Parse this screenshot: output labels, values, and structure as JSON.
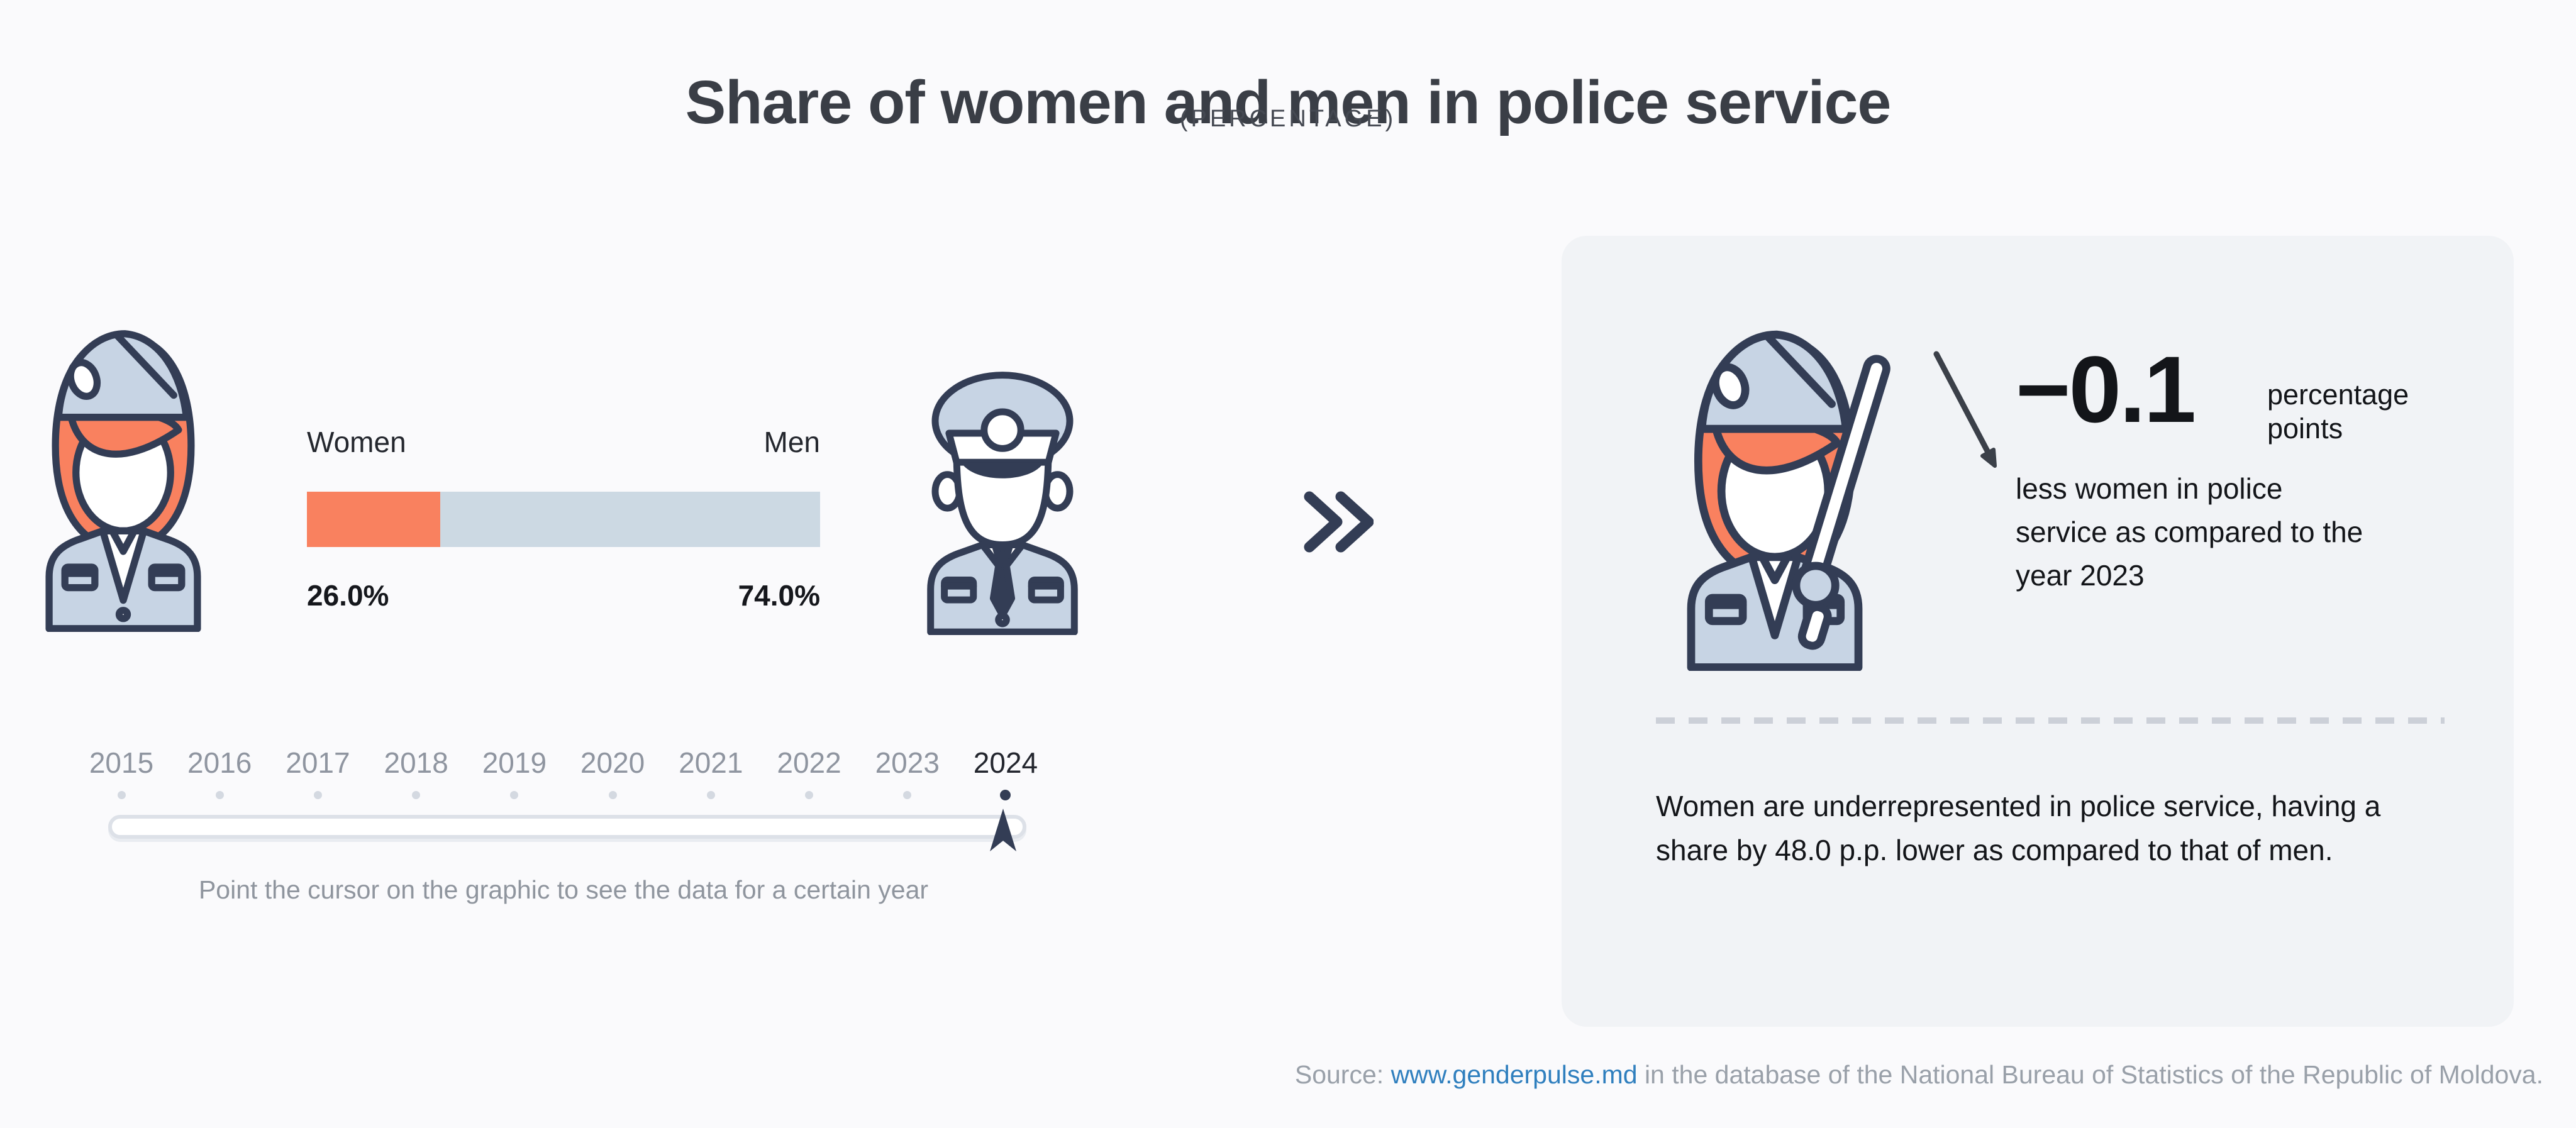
{
  "header": {
    "title": "Share of women and men in police service",
    "subtitle": "(PERCENTAGE)"
  },
  "chart": {
    "women_label": "Women",
    "men_label": "Men",
    "women_value": "26.0%",
    "men_value": "74.0%"
  },
  "chart_data": {
    "type": "bar",
    "title": "Share of women and men in police service",
    "subtitle": "(PERCENTAGE)",
    "categories": [
      "Women",
      "Men"
    ],
    "values": [
      26.0,
      74.0
    ],
    "unit": "%",
    "selected_year": 2024,
    "timeline_years": [
      2015,
      2016,
      2017,
      2018,
      2019,
      2020,
      2021,
      2022,
      2023,
      2024
    ],
    "change_vs_previous_year_pp": -0.1,
    "gap_women_vs_men_pp": 48.0,
    "legend_position": "above-bar",
    "colors": {
      "women": "#f9815f",
      "men": "#ccd9e3"
    }
  },
  "timeline": {
    "years": [
      "2015",
      "2016",
      "2017",
      "2018",
      "2019",
      "2020",
      "2021",
      "2022",
      "2023",
      "2024"
    ],
    "selected_year": "2024",
    "hint": "Point the cursor on the graphic to see the data for a certain year"
  },
  "card": {
    "delta_value": "−0.1",
    "delta_unit": "percentage points",
    "delta_text": "less women in police service as compared to the year 2023",
    "summary": "Women are underrepresented in police service, having a share by 48.0 p.p. lower as compared to that of men."
  },
  "source": {
    "label": "Source:",
    "link_text": "www.genderpulse.md",
    "rest": "in the database of the National Bureau of Statistics of the Republic of Moldova."
  },
  "colors": {
    "women": "#f9815f",
    "men": "#ccd9e3",
    "accent_navy": "#333d55",
    "link_blue": "#2f7fbe",
    "card_background": "#f1f3f6",
    "page_background": "#fafafc"
  }
}
